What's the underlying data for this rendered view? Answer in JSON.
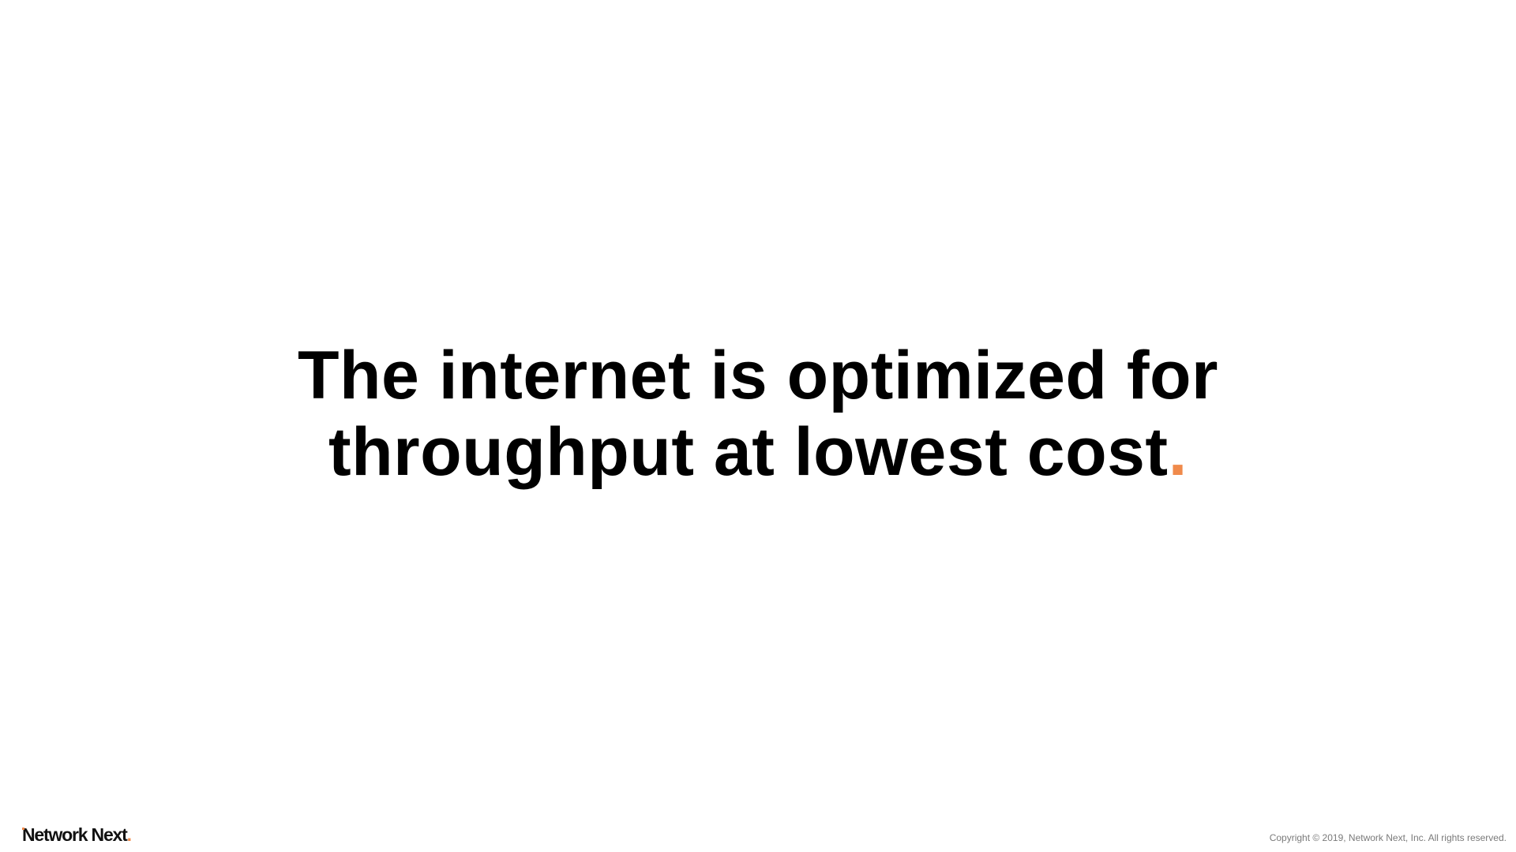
{
  "slide": {
    "headline_line1": "The internet is optimized for",
    "headline_line2": "throughput at lowest cost",
    "headline_end": ".",
    "accent_color": "#f08a4b"
  },
  "footer": {
    "logo_text": "Network Next",
    "logo_dot": ".",
    "copyright": "Copyright © 2019, Network Next, Inc. All rights reserved."
  }
}
